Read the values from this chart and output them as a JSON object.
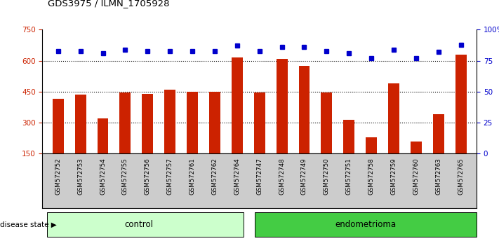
{
  "title": "GDS3975 / ILMN_1705928",
  "samples": [
    "GSM572752",
    "GSM572753",
    "GSM572754",
    "GSM572755",
    "GSM572756",
    "GSM572757",
    "GSM572761",
    "GSM572762",
    "GSM572764",
    "GSM572747",
    "GSM572748",
    "GSM572749",
    "GSM572750",
    "GSM572751",
    "GSM572758",
    "GSM572759",
    "GSM572760",
    "GSM572763",
    "GSM572765"
  ],
  "counts": [
    415,
    435,
    320,
    445,
    440,
    460,
    450,
    450,
    615,
    445,
    610,
    575,
    445,
    315,
    230,
    490,
    210,
    340,
    630
  ],
  "percentiles": [
    83,
    83,
    81,
    84,
    83,
    83,
    83,
    83,
    87,
    83,
    86,
    86,
    83,
    81,
    77,
    84,
    77,
    82,
    88
  ],
  "control_count": 9,
  "endometrioma_count": 10,
  "ylim_left": [
    150,
    750
  ],
  "ylim_right": [
    0,
    100
  ],
  "yticks_left": [
    150,
    300,
    450,
    600,
    750
  ],
  "yticks_right": [
    0,
    25,
    50,
    75,
    100
  ],
  "bar_color": "#cc2200",
  "dot_color": "#0000cc",
  "control_bg": "#ccffcc",
  "endometrioma_bg": "#44cc44",
  "xticklabel_bg": "#cccccc",
  "plot_bg": "#ffffff",
  "grid_color": "#000000",
  "bar_bottom": 150
}
